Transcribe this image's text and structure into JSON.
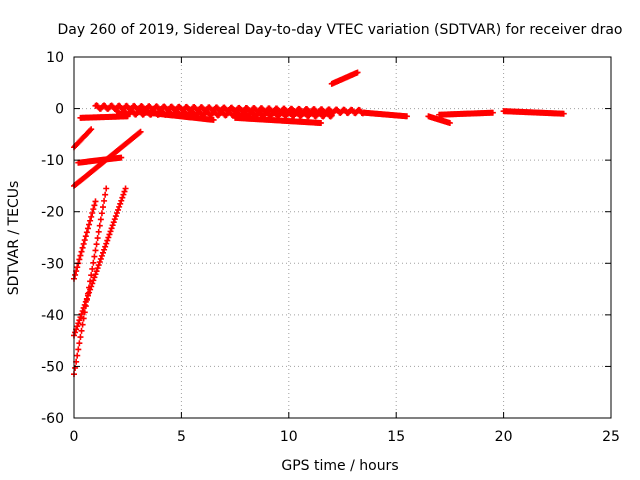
{
  "chart_data": {
    "type": "scatter",
    "title": "Day 260 of 2019, Sidereal Day-to-day VTEC variation (SDTVAR) for receiver drao",
    "xlabel": "GPS time / hours",
    "ylabel": "SDTVAR / TECUs",
    "xlim": [
      0,
      25
    ],
    "ylim": [
      -60,
      10
    ],
    "xticks": [
      0,
      5,
      10,
      15,
      20,
      25
    ],
    "yticks": [
      10,
      0,
      -10,
      -20,
      -30,
      -40,
      -50,
      -60
    ],
    "grid": true,
    "marker": "+",
    "color": "#ff0000",
    "tracks": [
      {
        "x0": 0.0,
        "x1": 1.5,
        "y0": -51.5,
        "y1": -15.5
      },
      {
        "x0": 0.0,
        "x1": 2.4,
        "y0": -44.0,
        "y1": -15.5
      },
      {
        "x0": 0.0,
        "x1": 1.0,
        "y0": -33.0,
        "y1": -18.0
      },
      {
        "x0": 0.0,
        "x1": 0.8,
        "y0": -7.5,
        "y1": -4.0
      },
      {
        "x0": 0.0,
        "x1": 3.1,
        "y0": -15.0,
        "y1": -4.5
      },
      {
        "x0": 0.2,
        "x1": 2.2,
        "y0": -10.5,
        "y1": -9.5
      },
      {
        "x0": 0.3,
        "x1": 2.5,
        "y0": -1.8,
        "y1": -1.5
      },
      {
        "x0": 1.0,
        "x1": 13.5,
        "y0": 0.3,
        "y1": -0.6
      },
      {
        "x0": 2.0,
        "x1": 12.0,
        "y0": -0.8,
        "y1": -1.2
      },
      {
        "x0": 3.0,
        "x1": 6.5,
        "y0": -0.6,
        "y1": -2.2
      },
      {
        "x0": 7.5,
        "x1": 11.5,
        "y0": -1.8,
        "y1": -2.8
      },
      {
        "x0": 12.0,
        "x1": 13.2,
        "y0": 4.8,
        "y1": 7.0
      },
      {
        "x0": 13.5,
        "x1": 15.5,
        "y0": -0.8,
        "y1": -1.5
      },
      {
        "x0": 16.5,
        "x1": 17.5,
        "y0": -1.5,
        "y1": -2.8
      },
      {
        "x0": 17.0,
        "x1": 19.5,
        "y0": -1.2,
        "y1": -0.8
      },
      {
        "x0": 20.0,
        "x1": 22.8,
        "y0": -0.5,
        "y1": -1.0
      }
    ]
  }
}
